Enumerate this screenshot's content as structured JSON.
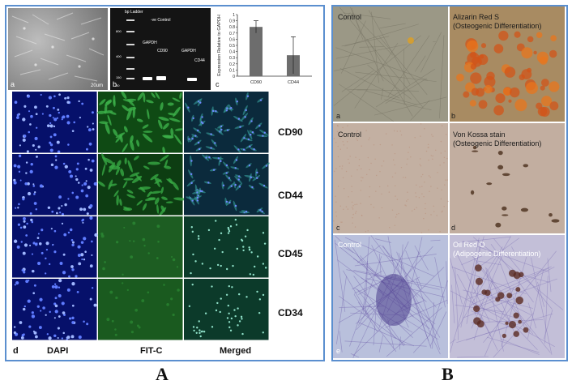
{
  "panel_A": {
    "figure_letter": "A",
    "sublabels": {
      "a": "a",
      "b": "b",
      "c": "c",
      "d": "d"
    },
    "gel": {
      "ladder_label": "bp Ladder",
      "control_label": "-ve Control",
      "lane_labels": [
        "GAPDH",
        "CD90",
        "GAPDH",
        "CD44"
      ],
      "size_markers": [
        "800",
        "400",
        "150",
        "50"
      ]
    },
    "scale_label": "20um",
    "column_headers": [
      "DAPI",
      "FIT-C",
      "Merged"
    ],
    "row_markers": [
      "CD90",
      "CD44",
      "CD45",
      "CD34"
    ]
  },
  "chart_data": {
    "type": "bar",
    "categories": [
      "CD90",
      "CD44"
    ],
    "values": [
      0.8,
      0.34
    ],
    "errors": [
      0.1,
      0.3
    ],
    "ylabel": "Expression Relative to GAPDH",
    "yticks": [
      "0",
      "0.1",
      "0.2",
      "0.3",
      "0.4",
      "0.5",
      "0.6",
      "0.7",
      "0.8",
      "0.9",
      "1"
    ],
    "ylim": [
      0,
      1
    ],
    "bar_color": "#6d6d6d"
  },
  "panel_B": {
    "figure_letter": "B",
    "sublabels": [
      "a",
      "b",
      "c",
      "d",
      "e"
    ],
    "rows": [
      {
        "left": "Control",
        "right_title": "Alizarin Red S",
        "right_sub": "(Osteogenic Differentiation)"
      },
      {
        "left": "Control",
        "right_title": "Von Kossa stain",
        "right_sub": "(Osteogenic Differentiation)"
      },
      {
        "left": "Control",
        "right_title": "Oil Red O",
        "right_sub": "(Adipogenic Differentiation)"
      }
    ]
  },
  "colors": {
    "border": "#5b8fcf",
    "dapi": "#0b1a8a",
    "fitc": "#1f7a2a",
    "alizarin": "#d2541a"
  }
}
